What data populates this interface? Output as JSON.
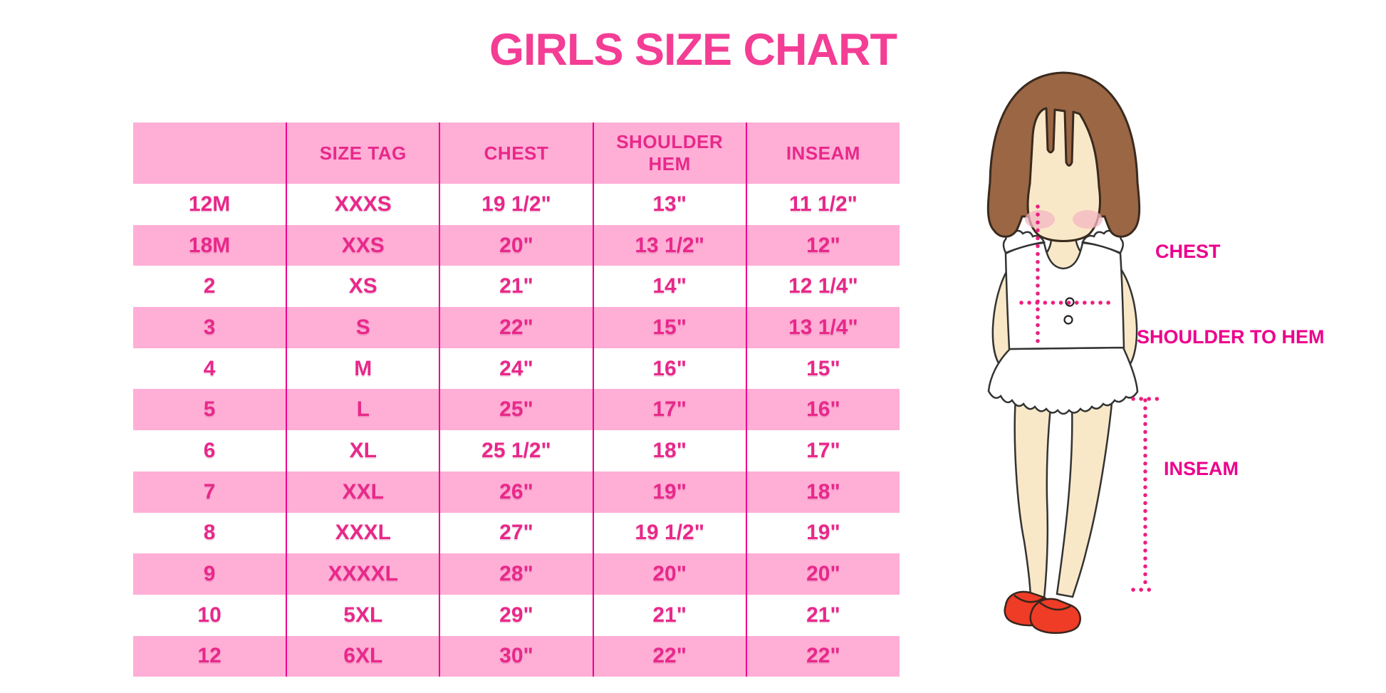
{
  "title": "GIRLS SIZE CHART",
  "chart_data": {
    "type": "table",
    "title": "GIRLS SIZE CHART",
    "columns": [
      "",
      "SIZE TAG",
      "CHEST",
      "SHOULDER HEM",
      "INSEAM"
    ],
    "rows": [
      [
        "12M",
        "XXXS",
        "19 1/2\"",
        "13\"",
        "11 1/2\""
      ],
      [
        "18M",
        "XXS",
        "20\"",
        "13 1/2\"",
        "12\""
      ],
      [
        "2",
        "XS",
        "21\"",
        "14\"",
        "12 1/4\""
      ],
      [
        "3",
        "S",
        "22\"",
        "15\"",
        "13 1/4\""
      ],
      [
        "4",
        "M",
        "24\"",
        "16\"",
        "15\""
      ],
      [
        "5",
        "L",
        "25\"",
        "17\"",
        "16\""
      ],
      [
        "6",
        "XL",
        "25 1/2\"",
        "18\"",
        "17\""
      ],
      [
        "7",
        "XXL",
        "26\"",
        "19\"",
        "18\""
      ],
      [
        "8",
        "XXXL",
        "27\"",
        "19 1/2\"",
        "19\""
      ],
      [
        "9",
        "XXXXL",
        "28\"",
        "20\"",
        "20\""
      ],
      [
        "10",
        "5XL",
        "29\"",
        "21\"",
        "21\""
      ],
      [
        "12",
        "6XL",
        "30\"",
        "22\"",
        "22\""
      ]
    ],
    "legend_position": "none",
    "grid": "vertical-dividers-only"
  },
  "figure": {
    "chest_label": "CHEST",
    "shoulder_to_hem_label": "SHOULDER TO HEM",
    "inseam_label": "INSEAM"
  },
  "colors": {
    "accent": "#ec008c",
    "title_pink": "#f43d95",
    "row_pink": "#ffaed6",
    "cell_text": "#e8288a",
    "hair_brown": "#9a6644",
    "hair_outline": "#3a2a1e",
    "skin": "#f9e8c8",
    "blush": "#f4b7c3",
    "dress_white": "#ffffff",
    "dress_outline": "#333333",
    "shoe_red": "#ee3c26",
    "dotted_line": "#ec1f7f"
  }
}
